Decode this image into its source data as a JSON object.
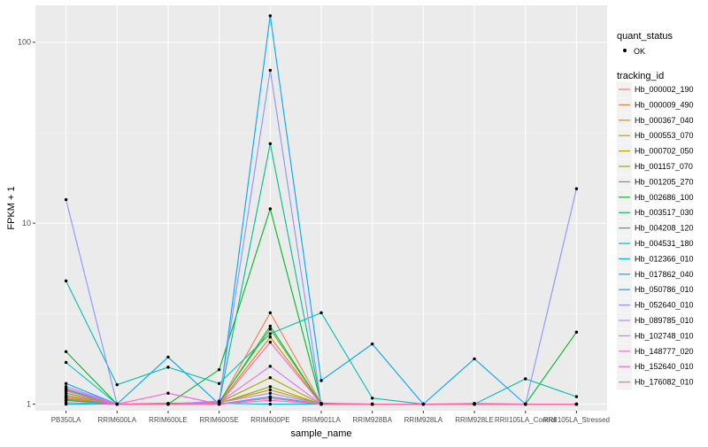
{
  "chart_data": {
    "type": "line",
    "xlabel": "sample_name",
    "ylabel": "FPKM + 1",
    "yscale": "log10",
    "ylim": [
      0.92,
      160
    ],
    "y_ticks": [
      1,
      10,
      100
    ],
    "y_tick_labels": [
      "1",
      "10",
      "100"
    ],
    "categories": [
      "PB350LA",
      "RRIM600LA",
      "RRIM600LE",
      "RRIM600SE",
      "RRIM600PE",
      "RRIM901LA",
      "RRIM928BA",
      "RRIM928LA",
      "RRIM928LE",
      "RRII105LA_Control",
      "RRII105LA_Stressed"
    ],
    "legend_position": "right",
    "legend_point": {
      "title": "quant_status",
      "label": "OK"
    },
    "legend_color": {
      "title": "tracking_id"
    },
    "series": [
      {
        "name": "Hb_000002_190",
        "color": "#F8766D",
        "values": [
          1.05,
          1.0,
          1.0,
          1.0,
          1.08,
          1.0,
          1.0,
          1.0,
          1.0,
          1.0,
          1.0
        ]
      },
      {
        "name": "Hb_000009_490",
        "color": "#EE8042",
        "values": [
          1.07,
          1.0,
          1.0,
          1.01,
          3.2,
          1.01,
          1.0,
          1.0,
          1.0,
          1.0,
          1.0
        ]
      },
      {
        "name": "Hb_000367_040",
        "color": "#DE8C00",
        "values": [
          1.1,
          1.0,
          1.0,
          1.01,
          2.35,
          1.0,
          1.0,
          1.0,
          1.0,
          1.0,
          1.0
        ]
      },
      {
        "name": "Hb_000553_070",
        "color": "#CB9700",
        "values": [
          1.12,
          1.0,
          1.0,
          1.02,
          1.2,
          1.0,
          1.0,
          1.0,
          1.0,
          1.0,
          1.0
        ]
      },
      {
        "name": "Hb_000702_050",
        "color": "#B3A000",
        "values": [
          1.08,
          1.0,
          1.0,
          1.02,
          1.4,
          1.0,
          1.0,
          1.0,
          1.0,
          1.0,
          1.0
        ]
      },
      {
        "name": "Hb_001157_070",
        "color": "#96A900",
        "values": [
          1.06,
          1.0,
          1.0,
          1.01,
          1.25,
          1.0,
          1.0,
          1.0,
          1.0,
          1.0,
          1.0
        ]
      },
      {
        "name": "Hb_001205_270",
        "color": "#6CB000",
        "values": [
          1.15,
          1.0,
          1.0,
          1.03,
          2.6,
          1.0,
          1.0,
          1.0,
          1.0,
          1.0,
          1.0
        ]
      },
      {
        "name": "Hb_002686_100",
        "color": "#00B81F",
        "values": [
          1.95,
          1.0,
          1.0,
          1.55,
          12.0,
          1.01,
          1.0,
          1.0,
          1.0,
          1.0,
          2.5
        ]
      },
      {
        "name": "Hb_003517_030",
        "color": "#00BC61",
        "values": [
          1.2,
          1.0,
          1.01,
          1.02,
          2.7,
          1.0,
          1.0,
          1.0,
          1.0,
          1.0,
          1.0
        ]
      },
      {
        "name": "Hb_004208_120",
        "color": "#00BF8C",
        "values": [
          1.05,
          1.0,
          1.0,
          1.02,
          27.5,
          1.0,
          1.0,
          1.0,
          1.0,
          1.0,
          1.0
        ]
      },
      {
        "name": "Hb_004531_180",
        "color": "#00BFAF",
        "values": [
          4.8,
          1.28,
          1.6,
          1.3,
          2.45,
          3.2,
          1.08,
          1.0,
          1.0,
          1.38,
          1.1
        ]
      },
      {
        "name": "Hb_012366_010",
        "color": "#00BBCF",
        "values": [
          1.7,
          1.0,
          1.0,
          1.01,
          1.0,
          1.0,
          1.0,
          1.0,
          1.0,
          1.0,
          1.0
        ]
      },
      {
        "name": "Hb_017862_040",
        "color": "#00B2E9",
        "values": [
          1.0,
          1.0,
          1.0,
          1.0,
          1.1,
          1.0,
          1.0,
          1.0,
          1.0,
          1.0,
          1.0
        ]
      },
      {
        "name": "Hb_050786_010",
        "color": "#00A5FF",
        "values": [
          1.3,
          1.0,
          1.82,
          1.0,
          140.0,
          1.35,
          2.15,
          1.0,
          1.78,
          1.0,
          1.0
        ]
      },
      {
        "name": "Hb_052640_010",
        "color": "#8B93FF",
        "values": [
          13.5,
          1.0,
          1.0,
          1.04,
          70.0,
          1.0,
          1.0,
          1.0,
          1.01,
          1.0,
          15.5
        ]
      },
      {
        "name": "Hb_089785_010",
        "color": "#BF80FF",
        "values": [
          1.25,
          1.0,
          1.0,
          1.02,
          1.15,
          1.0,
          1.0,
          1.0,
          1.0,
          1.0,
          1.0
        ]
      },
      {
        "name": "Hb_102748_010",
        "color": "#DF70F8",
        "values": [
          1.22,
          1.0,
          1.0,
          1.02,
          1.62,
          1.0,
          1.0,
          1.0,
          1.0,
          1.0,
          1.0
        ]
      },
      {
        "name": "Hb_148777_020",
        "color": "#F366E4",
        "values": [
          1.1,
          1.0,
          1.0,
          1.0,
          1.05,
          1.0,
          1.0,
          1.0,
          1.0,
          1.0,
          1.0
        ]
      },
      {
        "name": "Hb_152640_010",
        "color": "#FD61D1",
        "values": [
          1.18,
          1.0,
          1.15,
          1.0,
          2.2,
          1.0,
          1.0,
          1.0,
          1.0,
          1.0,
          1.0
        ]
      },
      {
        "name": "Hb_176082_010",
        "color": "#FF67A4",
        "values": [
          1.02,
          1.0,
          1.0,
          1.0,
          1.08,
          1.0,
          1.0,
          1.0,
          1.0,
          1.0,
          1.0
        ]
      }
    ]
  },
  "style": {
    "panel_background": "#EBEBEB",
    "grid_major": "#FFFFFF",
    "text_color": "#4D4D4D",
    "title_color": "#000000",
    "point_color": "#000000"
  }
}
